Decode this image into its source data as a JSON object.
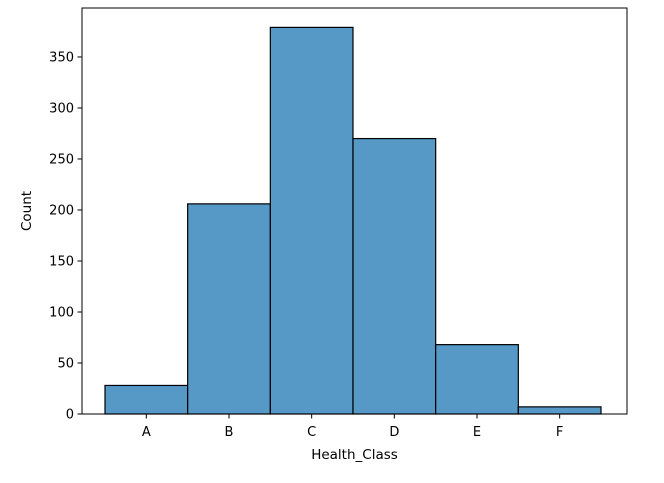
{
  "chart_data": {
    "type": "bar",
    "title": "",
    "xlabel": "Health_Class",
    "ylabel": "Count",
    "categories": [
      "A",
      "B",
      "C",
      "D",
      "E",
      "F"
    ],
    "values": [
      28,
      206,
      379,
      270,
      68,
      7
    ],
    "ylim": [
      0,
      398
    ],
    "yticks": [
      0,
      50,
      100,
      150,
      200,
      250,
      300,
      350
    ],
    "grid": false,
    "bar_color": "#5698C6",
    "edge_color": "#000000"
  }
}
